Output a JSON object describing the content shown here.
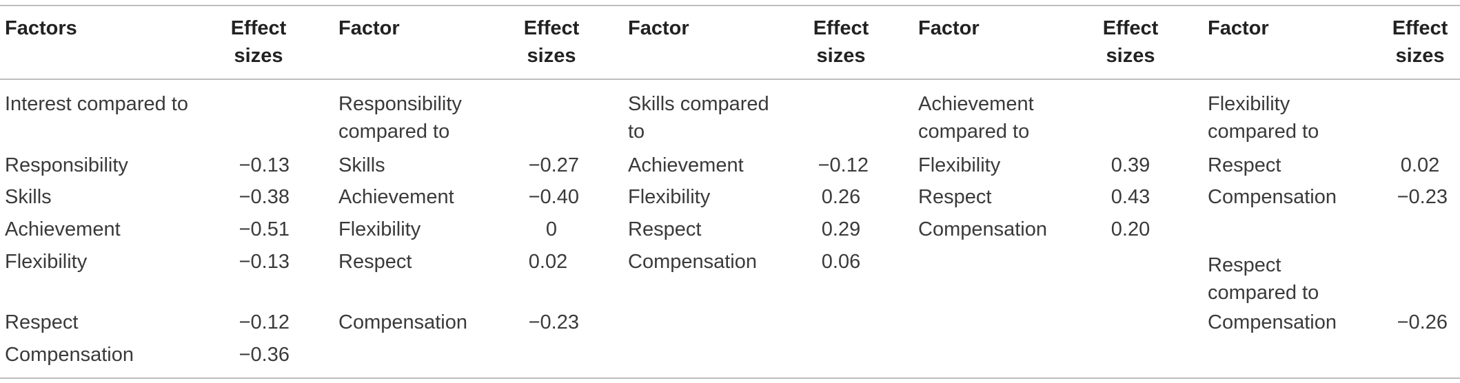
{
  "headers": {
    "c1_factor": "Factors",
    "c1_effect": "Effect\nsizes",
    "c2_factor": "Factor",
    "c2_effect": "Effect\nsizes",
    "c3_factor": "Factor",
    "c3_effect": "Effect\nsizes",
    "c4_factor": "Factor",
    "c4_effect": "Effect\nsizes",
    "c5_factor": "Factor",
    "c5_effect": "Effect\nsizes"
  },
  "col1": {
    "group": "Interest compared to",
    "rows": [
      {
        "factor": "Responsibility",
        "value": "−0.13"
      },
      {
        "factor": "Skills",
        "value": "−0.38"
      },
      {
        "factor": "Achievement",
        "value": "−0.51"
      },
      {
        "factor": "Flexibility",
        "value": "−0.13"
      },
      {
        "factor": "Respect",
        "value": "−0.12"
      },
      {
        "factor": "Compensation",
        "value": "−0.36"
      }
    ]
  },
  "col2": {
    "group": "Responsibility\ncompared to",
    "rows": [
      {
        "factor": "Skills",
        "value": "−0.27"
      },
      {
        "factor": "Achievement",
        "value": "−0.40"
      },
      {
        "factor": "Flexibility",
        "value": "0"
      },
      {
        "factor": "Respect",
        "value": "0.02"
      },
      {
        "factor": "Compensation",
        "value": "−0.23"
      }
    ]
  },
  "col3": {
    "group": "Skills compared\nto",
    "rows": [
      {
        "factor": "Achievement",
        "value": "−0.12"
      },
      {
        "factor": "Flexibility",
        "value": "0.26"
      },
      {
        "factor": "Respect",
        "value": "0.29"
      },
      {
        "factor": "Compensation",
        "value": "0.06"
      }
    ]
  },
  "col4": {
    "group": "Achievement\ncompared to",
    "rows": [
      {
        "factor": "Flexibility",
        "value": "0.39"
      },
      {
        "factor": "Respect",
        "value": "0.43"
      },
      {
        "factor": "Compensation",
        "value": "0.20"
      }
    ]
  },
  "col5": {
    "group": "Flexibility\ncompared to",
    "rows": [
      {
        "factor": "Respect",
        "value": "0.02"
      },
      {
        "factor": "Compensation",
        "value": "−0.23"
      }
    ],
    "group2": "Respect\ncompared to",
    "rows2": [
      {
        "factor": "Compensation",
        "value": "−0.26"
      }
    ]
  }
}
